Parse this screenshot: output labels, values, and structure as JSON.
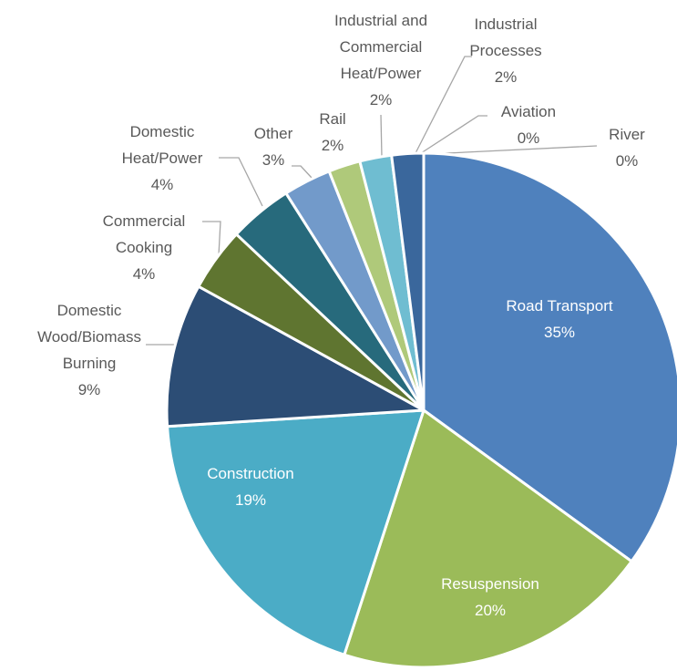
{
  "chart_data": {
    "type": "pie",
    "categories": [
      "Road Transport",
      "Resuspension",
      "Construction",
      "Domestic\nWood/Biomass\nBurning",
      "Commercial\nCooking",
      "Domestic\nHeat/Power",
      "Other",
      "Rail",
      "Industrial and\nCommercial\nHeat/Power",
      "Industrial\nProcesses",
      "Aviation",
      "River"
    ],
    "values": [
      35,
      20,
      19,
      9,
      4,
      4,
      3,
      2,
      2,
      2,
      0,
      0
    ],
    "value_labels": [
      "35%",
      "20%",
      "19%",
      "9%",
      "4%",
      "4%",
      "3%",
      "2%",
      "2%",
      "2%",
      "0%",
      "0%"
    ],
    "colors": [
      "#4f81bd",
      "#9bbb59",
      "#4bacc6",
      "#2c4d75",
      "#5f7530",
      "#276a7c",
      "#729aca",
      "#afc97a",
      "#6fbdd1",
      "#3a679c",
      "#7f9fcf",
      "#b9cf8f"
    ]
  }
}
